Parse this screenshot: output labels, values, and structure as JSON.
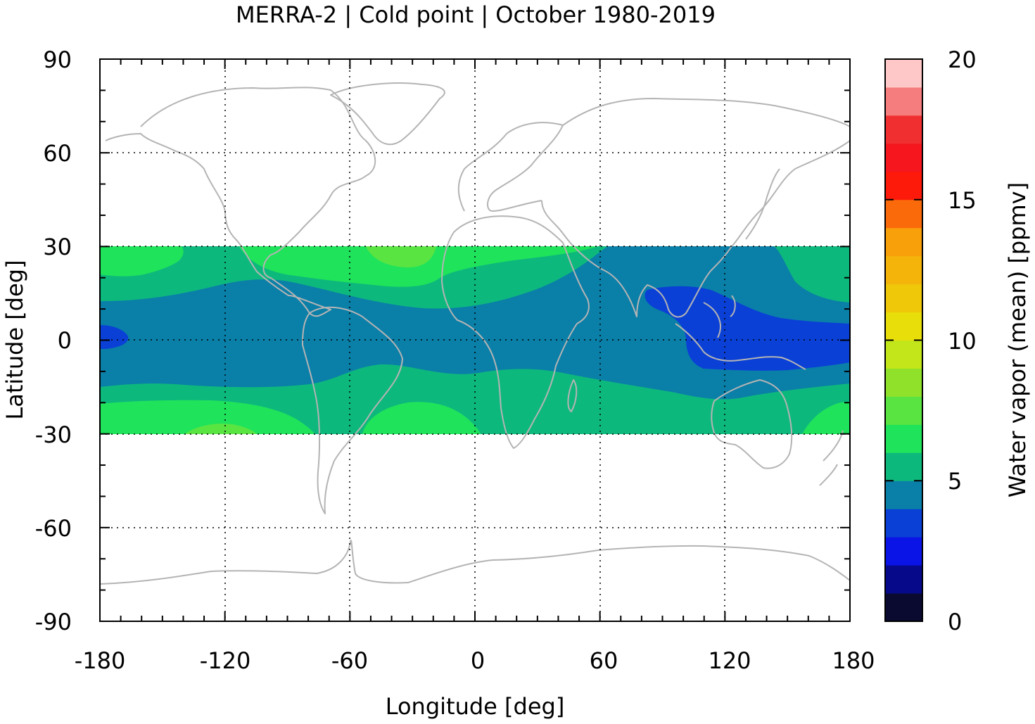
{
  "chart_data": {
    "type": "heatmap",
    "title": "MERRA-2 | Cold point | October 1980-2019",
    "xlabel": "Longitude [deg]",
    "ylabel": "Latitude [deg]",
    "colorbar_label": "Water vapor (mean) [ppmv]",
    "xlim": [
      -180,
      180
    ],
    "ylim": [
      -90,
      90
    ],
    "x_ticks": [
      -180,
      -120,
      -60,
      0,
      60,
      120,
      180
    ],
    "y_ticks": [
      90,
      60,
      30,
      0,
      -30,
      -60,
      -90
    ],
    "x_tick_labels": [
      "-180",
      "-120",
      "-60",
      "0",
      "60",
      "120",
      "180"
    ],
    "y_tick_labels": [
      "90",
      "60",
      "30",
      "0",
      "-30",
      "-60",
      "-90"
    ],
    "grid": true,
    "data_lat_range": [
      -30,
      30
    ],
    "colorbar": {
      "range": [
        0,
        20
      ],
      "ticks": [
        "0",
        "5",
        "10",
        "15",
        "20"
      ],
      "levels": [
        0,
        1,
        2,
        3,
        4,
        5,
        6,
        7,
        8,
        9,
        10,
        11,
        12,
        13,
        14,
        15,
        16,
        17,
        18,
        19,
        20
      ],
      "colors": [
        "#0a0a30",
        "#060a8a",
        "#0a14e6",
        "#0a40d6",
        "#0a7fa8",
        "#0db87d",
        "#1fe35a",
        "#5ae442",
        "#8fe12a",
        "#c3e61a",
        "#e8de0a",
        "#f0c80a",
        "#f5b40a",
        "#f8a00a",
        "#fb6a0a",
        "#fd1a0a",
        "#f5161e",
        "#f03030",
        "#f57d7d",
        "#ffc8c8"
      ]
    },
    "field_regions": [
      {
        "level": "5-6 ppmv",
        "color": "#0db87d",
        "region": "subtropical bands 12-30 N and 14-30 S"
      },
      {
        "level": "6-7 ppmv",
        "color": "#1fe35a",
        "region": "patches over eastern Pacific, Atlantic and southern subtropics"
      },
      {
        "level": "7-8 ppmv",
        "color": "#5ae442",
        "region": "small cores near 25 N over Atlantic and 28 S over Pacific"
      },
      {
        "level": "4-5 ppmv",
        "color": "#0a7fa8",
        "region": "equatorial band roughly 15 S to 20 N"
      },
      {
        "level": "3-4 ppmv",
        "color": "#0a40d6",
        "region": "western Pacific warm pool 80-180 E, 5 S to 17 N and near dateline"
      }
    ],
    "coastline_color": "#b4b4b4"
  }
}
